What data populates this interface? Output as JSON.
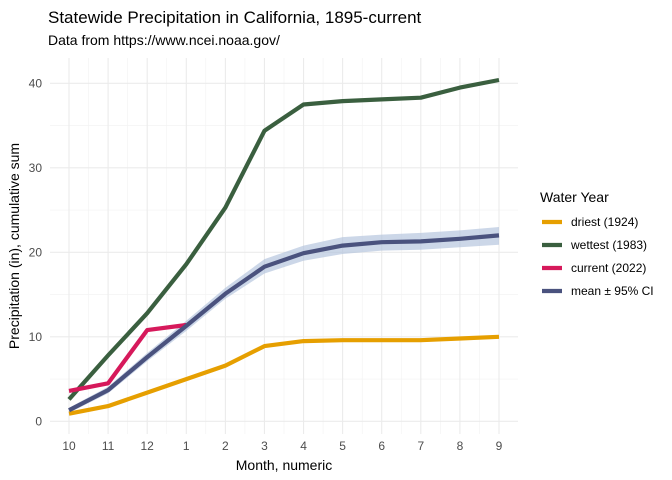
{
  "chart_data": {
    "type": "line",
    "title": "Statewide Precipitation in California, 1895-current",
    "subtitle": "Data from https://www.ncei.noaa.gov/",
    "xlabel": "Month, numeric",
    "ylabel": "Precipitation (in), cumulative sum",
    "categories": [
      "10",
      "11",
      "12",
      "1",
      "2",
      "3",
      "4",
      "5",
      "6",
      "7",
      "8",
      "9"
    ],
    "ylim": [
      -1.5,
      43
    ],
    "yticks": [
      0,
      10,
      20,
      30,
      40
    ],
    "grid": true,
    "legend": {
      "title": "Water Year",
      "position": "right"
    },
    "series": [
      {
        "name": "driest (1924)",
        "color": "#E69F00",
        "values": [
          0.9,
          1.8,
          3.4,
          5.0,
          6.6,
          8.9,
          9.5,
          9.6,
          9.6,
          9.6,
          9.8,
          10.0
        ]
      },
      {
        "name": "wettest (1983)",
        "color": "#3A5F3F",
        "values": [
          2.6,
          7.8,
          12.8,
          18.6,
          25.3,
          34.4,
          37.5,
          37.9,
          38.1,
          38.3,
          39.5,
          40.4
        ]
      },
      {
        "name": "current (2022)",
        "color": "#D6195B",
        "values": [
          3.6,
          4.5,
          10.8,
          11.4,
          null,
          null,
          null,
          null,
          null,
          null,
          null,
          null
        ]
      },
      {
        "name": "mean ± 95% CI",
        "color": "#4A527E",
        "band_color": "#B0C1DB",
        "values": [
          1.3,
          3.7,
          7.6,
          11.3,
          15.1,
          18.3,
          19.9,
          20.8,
          21.2,
          21.3,
          21.6,
          22.0
        ],
        "lower": [
          1.0,
          3.3,
          7.1,
          10.7,
          14.5,
          17.5,
          19.0,
          19.8,
          20.2,
          20.3,
          20.6,
          20.9
        ],
        "upper": [
          1.6,
          4.1,
          8.1,
          11.9,
          15.8,
          19.2,
          20.8,
          21.8,
          22.1,
          22.3,
          22.6,
          23.0
        ]
      }
    ]
  }
}
